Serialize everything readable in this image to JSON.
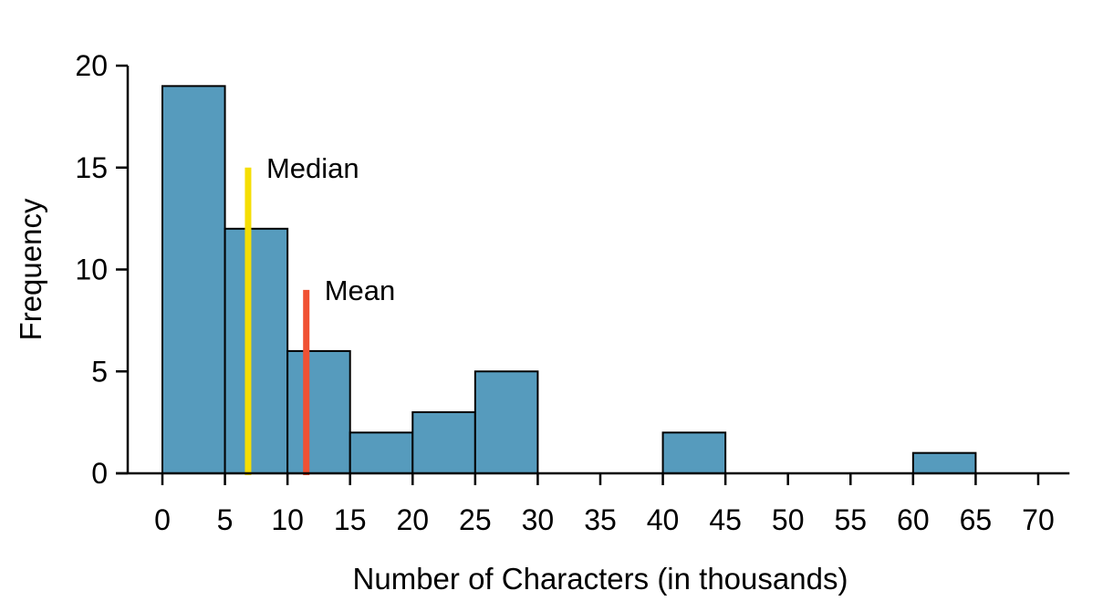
{
  "chart_data": {
    "type": "bar",
    "subtype": "histogram",
    "title": "",
    "xlabel": "Number of Characters (in thousands)",
    "ylabel": "Frequency",
    "bin_width": 5,
    "bin_start": 0,
    "categories": [
      "0-5",
      "5-10",
      "10-15",
      "15-20",
      "20-25",
      "25-30",
      "30-35",
      "35-40",
      "40-45",
      "45-50",
      "50-55",
      "55-60",
      "60-65",
      "65-70"
    ],
    "values": [
      19,
      12,
      6,
      2,
      3,
      5,
      0,
      0,
      2,
      0,
      0,
      0,
      1,
      0
    ],
    "x_ticks": [
      0,
      5,
      10,
      15,
      20,
      25,
      30,
      35,
      40,
      45,
      50,
      55,
      60,
      65,
      70
    ],
    "y_ticks": [
      0,
      5,
      10,
      15,
      20
    ],
    "xlim": [
      0,
      72.5
    ],
    "ylim": [
      0,
      20
    ],
    "grid": false,
    "legend_position": "none",
    "colors": {
      "bar_fill": "#569BBD",
      "bar_border": "#000000",
      "axis": "#000000",
      "median_line": "#F5DE03",
      "mean_line": "#F05133"
    },
    "annotations": [
      {
        "label": "Median",
        "x": 6.85,
        "line_top": 15,
        "color_key": "median_line"
      },
      {
        "label": "Mean",
        "x": 11.5,
        "line_top": 9,
        "color_key": "mean_line"
      }
    ]
  }
}
